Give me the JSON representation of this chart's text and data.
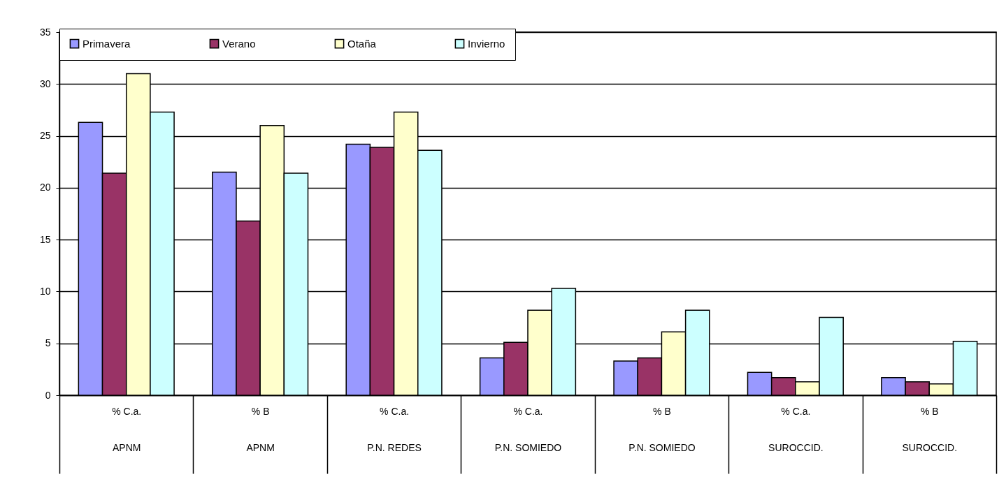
{
  "chart_data": {
    "type": "bar",
    "categories": [
      "% C.a.\nAPNM",
      "% B\nAPNM",
      "% C.a.\nP.N. REDES",
      "% C.a.\nP.N. SOMIEDO",
      "% B\nP.N. SOMIEDO",
      "% C.a.\nSUROCCID.",
      "% B\nSUROCCID."
    ],
    "series": [
      {
        "name": "Primavera",
        "color": "#9999ff",
        "values": [
          26.3,
          21.5,
          24.2,
          3.6,
          3.3,
          2.2,
          1.7
        ]
      },
      {
        "name": "Verano",
        "color": "#993366",
        "values": [
          21.4,
          16.8,
          23.9,
          5.1,
          3.6,
          1.7,
          1.3
        ]
      },
      {
        "name": "Otaña",
        "color": "#ffffcc",
        "values": [
          31.0,
          26.0,
          27.3,
          8.2,
          6.1,
          1.3,
          1.1
        ]
      },
      {
        "name": "Invierno",
        "color": "#ccffff",
        "values": [
          27.3,
          21.4,
          23.6,
          10.3,
          8.2,
          7.5,
          5.2
        ]
      }
    ],
    "ylim": [
      0,
      35
    ],
    "yticks": [
      0,
      5,
      10,
      15,
      20,
      25,
      30,
      35
    ],
    "grid": "y",
    "legend": "top"
  }
}
